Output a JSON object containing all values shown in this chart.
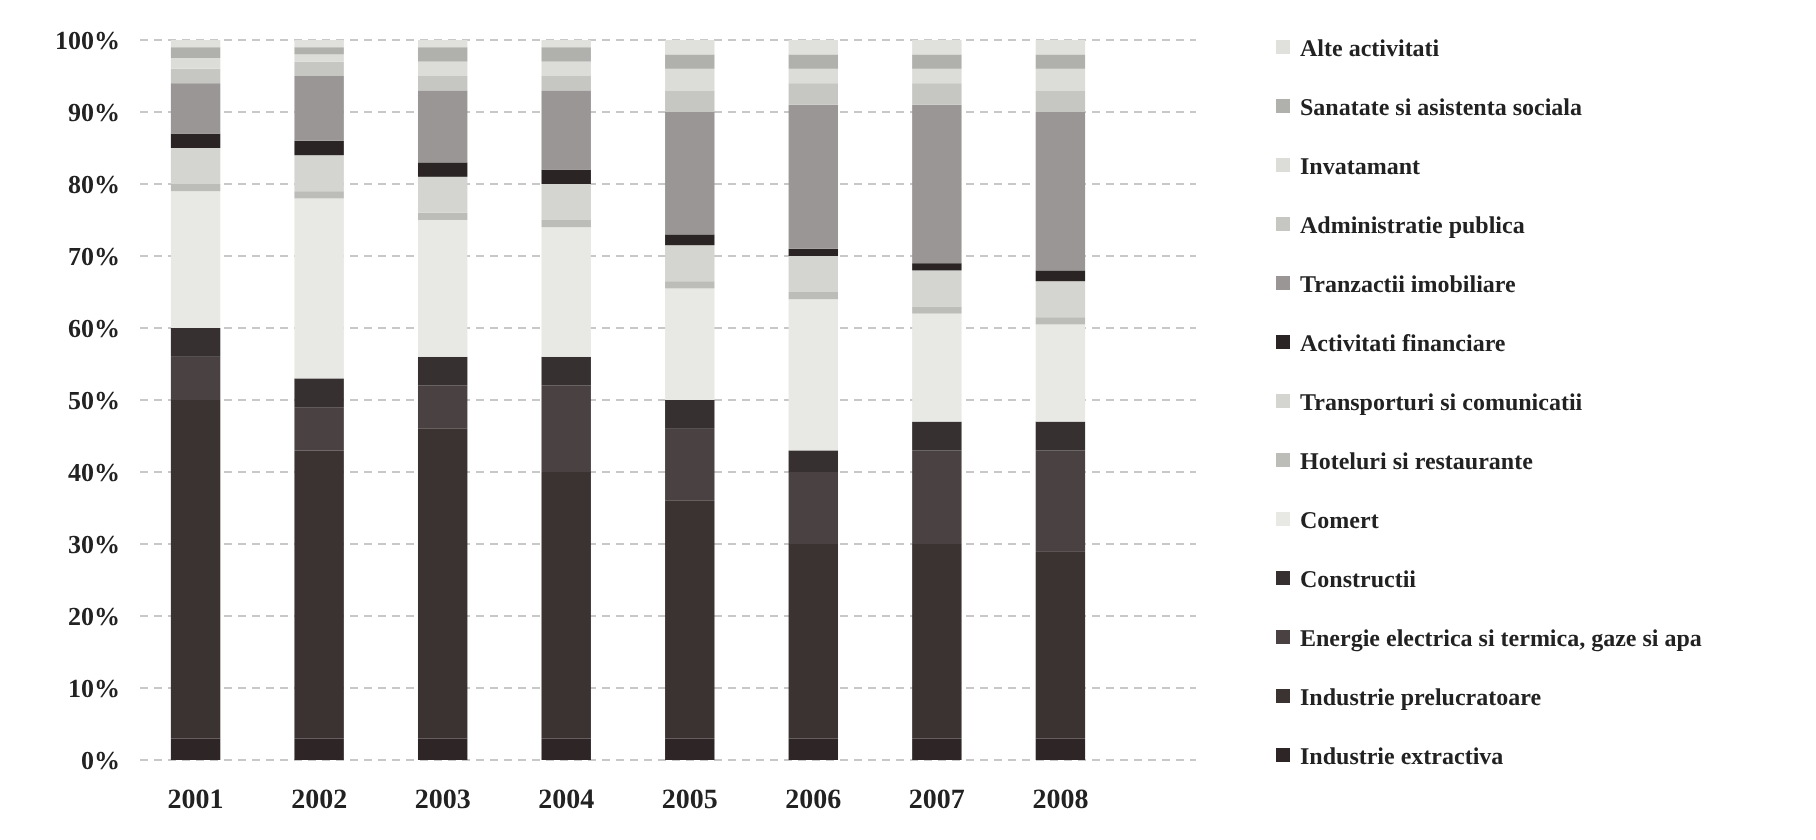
{
  "chart_data": {
    "type": "bar",
    "stacked": true,
    "categories": [
      "2001",
      "2002",
      "2003",
      "2004",
      "2005",
      "2006",
      "2007",
      "2008"
    ],
    "ylim": [
      0,
      100
    ],
    "yticks": [
      {
        "value": 0,
        "label": "0%"
      },
      {
        "value": 10,
        "label": "10%"
      },
      {
        "value": 20,
        "label": "20%"
      },
      {
        "value": 30,
        "label": "30%"
      },
      {
        "value": 40,
        "label": "40%"
      },
      {
        "value": 50,
        "label": "50%"
      },
      {
        "value": 60,
        "label": "60%"
      },
      {
        "value": 70,
        "label": "70%"
      },
      {
        "value": 80,
        "label": "80%"
      },
      {
        "value": 90,
        "label": "90%"
      },
      {
        "value": 100,
        "label": "100%"
      }
    ],
    "grid": "y",
    "legend": "right",
    "series": [
      {
        "name": "Industrie extractiva",
        "color": "#2e2626",
        "values": [
          3,
          3,
          3,
          3,
          3,
          3,
          3,
          3
        ]
      },
      {
        "name": "Industrie prelucratoare",
        "color": "#3b3232",
        "values": [
          47,
          40,
          43,
          37,
          33,
          27,
          27,
          26
        ]
      },
      {
        "name": "Energie electrica si termica, gaze si apa",
        "color": "#4a4242",
        "values": [
          6,
          6,
          6,
          12,
          10,
          10,
          13,
          14
        ]
      },
      {
        "name": "Constructii",
        "color": "#363030",
        "values": [
          4,
          4,
          4,
          4,
          4,
          3,
          4,
          4
        ]
      },
      {
        "name": "Comert",
        "color": "#e8e8e4",
        "values": [
          19,
          25,
          19,
          18,
          15.5,
          21,
          15,
          13.5
        ]
      },
      {
        "name": "Hoteluri si restaurante",
        "color": "#bcbcb8",
        "values": [
          1,
          1,
          1,
          1,
          1,
          1,
          1,
          1
        ]
      },
      {
        "name": "Transporturi si comunicatii",
        "color": "#d4d4d0",
        "values": [
          5,
          5,
          5,
          5,
          5,
          5,
          5,
          5
        ]
      },
      {
        "name": "Activitati financiare",
        "color": "#2a2424",
        "values": [
          2,
          2,
          2,
          2,
          1.5,
          1,
          1,
          1.5
        ]
      },
      {
        "name": "Tranzactii imobiliare",
        "color": "#9a9696",
        "values": [
          7,
          9,
          10,
          11,
          17,
          20,
          22,
          22
        ]
      },
      {
        "name": "Administratie publica",
        "color": "#c6c6c2",
        "values": [
          2,
          2,
          2,
          2,
          3,
          3,
          3,
          3
        ]
      },
      {
        "name": "Invatamant",
        "color": "#dcdcd8",
        "values": [
          1.5,
          1,
          2,
          2,
          3,
          2,
          2,
          3
        ]
      },
      {
        "name": "Sanatate si asistenta sociala",
        "color": "#b0b0ac",
        "values": [
          1.5,
          1,
          2,
          2,
          2,
          2,
          2,
          2
        ]
      },
      {
        "name": "Alte activitati",
        "color": "#e0e0dc",
        "values": [
          1,
          1,
          1,
          1,
          2,
          2,
          2,
          2
        ]
      }
    ]
  }
}
